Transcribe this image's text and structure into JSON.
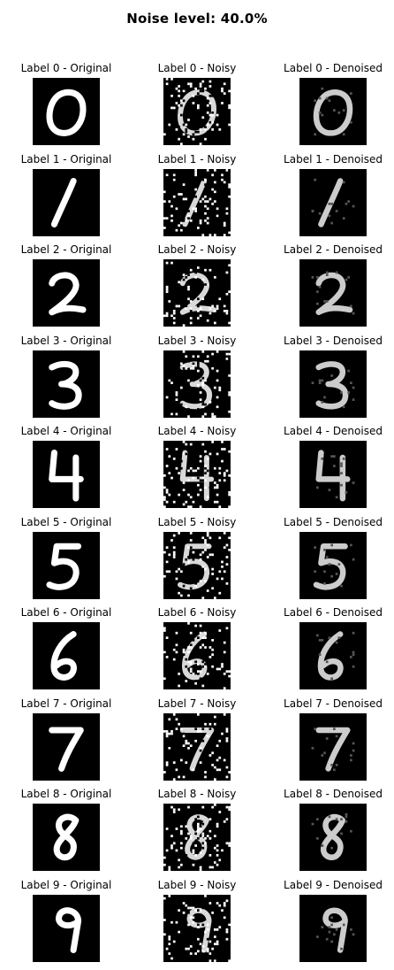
{
  "title": "Noise level: 40.0%",
  "columns": [
    "original",
    "noisy",
    "denoised"
  ],
  "rows": [
    {
      "digit": "0",
      "original": "Label 0 - Original",
      "noisy": "Label 0 - Noisy",
      "denoised": "Label 0 - Denoised"
    },
    {
      "digit": "1",
      "original": "Label 1 - Original",
      "noisy": "Label 1 - Noisy",
      "denoised": "Label 1 - Denoised"
    },
    {
      "digit": "2",
      "original": "Label 2 - Original",
      "noisy": "Label 2 - Noisy",
      "denoised": "Label 2 - Denoised"
    },
    {
      "digit": "3",
      "original": "Label 3 - Original",
      "noisy": "Label 3 - Noisy",
      "denoised": "Label 3 - Denoised"
    },
    {
      "digit": "4",
      "original": "Label 4 - Original",
      "noisy": "Label 4 - Noisy",
      "denoised": "Label 4 - Denoised"
    },
    {
      "digit": "5",
      "original": "Label 5 - Original",
      "noisy": "Label 5 - Noisy",
      "denoised": "Label 5 - Denoised"
    },
    {
      "digit": "6",
      "original": "Label 6 - Original",
      "noisy": "Label 6 - Noisy",
      "denoised": "Label 6 - Denoised"
    },
    {
      "digit": "7",
      "original": "Label 7 - Original",
      "noisy": "Label 7 - Noisy",
      "denoised": "Label 7 - Denoised"
    },
    {
      "digit": "8",
      "original": "Label 8 - Original",
      "noisy": "Label 8 - Noisy",
      "denoised": "Label 8 - Denoised"
    },
    {
      "digit": "9",
      "original": "Label 9 - Original",
      "noisy": "Label 9 - Noisy",
      "denoised": "Label 9 - Denoised"
    }
  ],
  "noise_level_percent": 40.0,
  "colors": {
    "background": "#000000",
    "stroke": "#ffffff"
  }
}
